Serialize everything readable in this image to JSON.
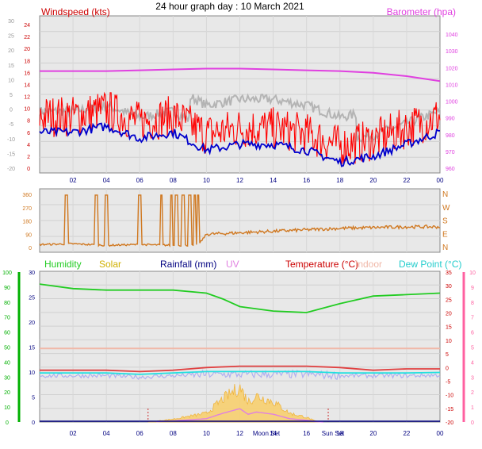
{
  "title": "24 hour graph day : 10 March 2021",
  "colors": {
    "windspeed": "#ff0000",
    "windavg": "#0000cc",
    "gust_gray": "#b4b4b4",
    "barometer": "#e040e0",
    "direction": "#d07820",
    "humidity": "#22cc22",
    "solar": "#f0b030",
    "rainfall": "#000080",
    "uv": "#e080e0",
    "temperature": "#cc0000",
    "indoor": "#f0b8a8",
    "dewpoint": "#22e0e0",
    "axis_left_green": "#00b000",
    "axis_right_pink": "#ff60a0",
    "plot_bg": "#e8e8e8",
    "time_axis": "#000080"
  },
  "time_ticks": [
    "02",
    "04",
    "06",
    "08",
    "10",
    "12",
    "14",
    "16",
    "18",
    "20",
    "22",
    "00"
  ],
  "wind_panel": {
    "windspeed_label": "Windspeed (kts)",
    "barometer_label": "Barometer (hpa)",
    "outer_left_ticks": [
      "30",
      "25",
      "20",
      "15",
      "10",
      "5",
      "0",
      "-5",
      "-10",
      "-15",
      "-20"
    ],
    "inner_left_ticks": [
      "24",
      "22",
      "20",
      "18",
      "16",
      "14",
      "12",
      "10",
      "8",
      "6",
      "4",
      "2",
      "0"
    ],
    "right_ticks": [
      "1040",
      "1030",
      "1020",
      "1010",
      "1000",
      "990",
      "980",
      "970",
      "960"
    ]
  },
  "direction_panel": {
    "left_ticks": [
      "360",
      "270",
      "180",
      "90",
      "0"
    ],
    "right_ticks": [
      "N",
      "W",
      "S",
      "E",
      "N"
    ]
  },
  "temp_panel": {
    "humidity_label": "Humidity",
    "solar_label": "Solar",
    "rainfall_label": "Rainfall (mm)",
    "uv_label": "UV",
    "temperature_label": "Temperature (°C)",
    "indoor_label": "Indoor",
    "dewpoint_label": "Dew Point (°C)",
    "outer_left_ticks": [
      "100",
      "90",
      "80",
      "70",
      "60",
      "50",
      "40",
      "30",
      "20",
      "10",
      "0"
    ],
    "inner_left_ticks": [
      "30",
      "25",
      "20",
      "15",
      "10",
      "5",
      "0"
    ],
    "right_inner_ticks": [
      "35",
      "30",
      "25",
      "20",
      "15",
      "10",
      "5",
      "0",
      "-5",
      "-10",
      "-15",
      "-20"
    ],
    "right_outer_ticks": [
      "10",
      "9",
      "8",
      "7",
      "6",
      "5",
      "4",
      "3",
      "2",
      "1",
      "0"
    ],
    "moon_set_label": "Moon Set",
    "sun_set_label": "Sun Set"
  },
  "chart_data": [
    {
      "type": "line",
      "title": "24 hour graph day : 10 March 2021",
      "series": [
        {
          "name": "Windspeed (kts)",
          "x": [
            0,
            2,
            4,
            6,
            8,
            10,
            12,
            14,
            16,
            18,
            20,
            22,
            24
          ],
          "y": [
            8,
            8,
            9,
            7,
            8,
            5,
            6,
            6,
            5,
            3,
            4,
            6,
            8
          ]
        },
        {
          "name": "Barometer (hpa)",
          "x": [
            0,
            2,
            4,
            6,
            8,
            10,
            12,
            14,
            16,
            18,
            20,
            22,
            24
          ],
          "y": [
            1018,
            1018,
            1018,
            1018.5,
            1019,
            1019.5,
            1019.5,
            1019,
            1018.5,
            1018,
            1017,
            1015,
            1012
          ]
        }
      ]
    },
    {
      "type": "scatter",
      "series": [
        {
          "name": "Wind direction",
          "x": [
            0,
            2,
            4,
            6,
            8,
            9.5,
            10,
            12,
            14,
            16,
            18,
            20,
            22,
            24
          ],
          "y": [
            20,
            25,
            15,
            20,
            15,
            15,
            90,
            100,
            110,
            120,
            130,
            135,
            140,
            140
          ]
        }
      ]
    },
    {
      "type": "line",
      "series": [
        {
          "name": "Humidity",
          "x": [
            0,
            2,
            4,
            6,
            8,
            10,
            11,
            12,
            14,
            16,
            18,
            20,
            22,
            24
          ],
          "y": [
            92,
            89,
            88,
            88,
            88,
            86,
            82,
            77,
            74,
            73,
            79,
            84,
            85,
            86
          ]
        },
        {
          "name": "Temperature (°C)",
          "x": [
            0,
            2,
            4,
            6,
            8,
            10,
            12,
            14,
            16,
            18,
            20,
            22,
            24
          ],
          "y": [
            -1,
            -1,
            -1,
            -1.5,
            -1,
            0,
            0.5,
            0.5,
            0.5,
            0,
            -1,
            -0.5,
            -0.5
          ]
        },
        {
          "name": "Dew Point (°C)",
          "x": [
            0,
            2,
            4,
            6,
            8,
            10,
            12,
            14,
            16,
            18,
            20,
            22,
            24
          ],
          "y": [
            -2,
            -2,
            -2,
            -2.5,
            -2,
            -1.5,
            -1.5,
            -1.5,
            -1.5,
            -2,
            -2,
            -2,
            -1.8
          ]
        },
        {
          "name": "Indoor",
          "x": [
            0,
            6,
            12,
            18,
            24
          ],
          "y": [
            7,
            7,
            7,
            7,
            7
          ]
        },
        {
          "name": "Solar",
          "x": [
            6.5,
            8,
            10,
            11,
            12,
            12.5,
            13,
            14,
            15,
            16,
            16.5,
            17
          ],
          "y": [
            0,
            50,
            150,
            400,
            600,
            350,
            450,
            350,
            150,
            80,
            20,
            0
          ]
        }
      ]
    }
  ]
}
